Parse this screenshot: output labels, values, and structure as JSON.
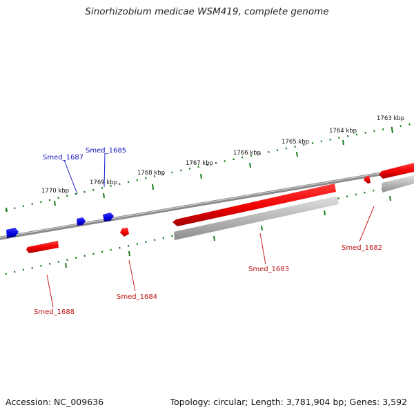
{
  "title": "Sinorhizobium medicae WSM419, complete genome",
  "footer": {
    "accession": "Accession: NC_009636",
    "summary": "Topology: circular; Length: 3,781,904 bp; Genes: 3,592"
  },
  "colors": {
    "forward_gene": "#ee0000",
    "reverse_gene": "#0000dd",
    "pseudo_gene": "#aaaaaa",
    "backbone": "#777777",
    "ticks": "#1a7a1a"
  },
  "scale": {
    "labels": [
      "1763 kbp",
      "1764 kbp",
      "1765 kbp",
      "1766 kbp",
      "1767 kbp",
      "1768 kbp",
      "1769 kbp",
      "1770 kbp"
    ]
  },
  "genes": [
    {
      "name": "Smed_1682",
      "strand": "red"
    },
    {
      "name": "Smed_1683",
      "strand": "red"
    },
    {
      "name": "Smed_1684",
      "strand": "red"
    },
    {
      "name": "Smed_1685",
      "strand": "blue"
    },
    {
      "name": "Smed_1687",
      "strand": "blue"
    },
    {
      "name": "Smed_1688",
      "strand": "red"
    }
  ]
}
